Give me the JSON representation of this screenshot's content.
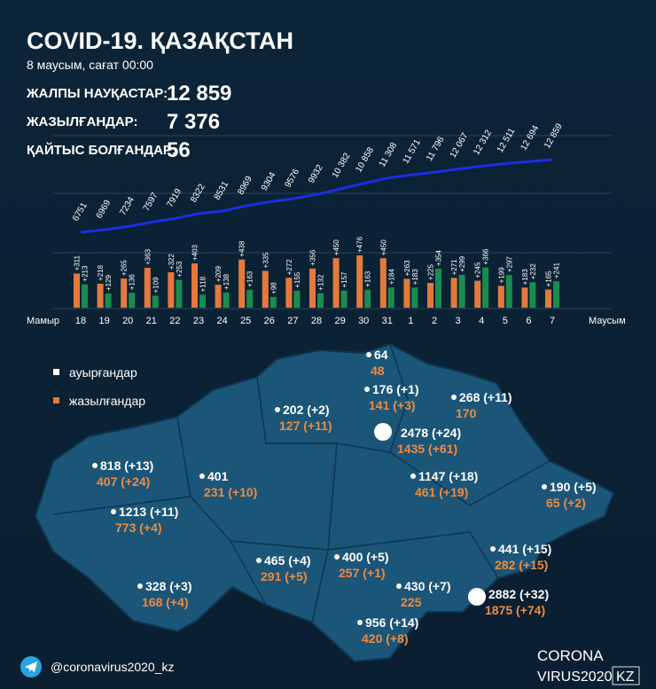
{
  "header": {
    "title": "COVID-19. ҚАЗАҚСТАН",
    "subtitle": "8 маусым, сағат 00:00",
    "stats": [
      {
        "label": "ЖАЛПЫ НАУҚАСТАР:",
        "value": "12 859"
      },
      {
        "label": "ЖАЗЫЛҒАНДАР:",
        "value": "7 376"
      },
      {
        "label": "ҚАЙТЫС БОЛҒАНДАР:",
        "value": "56"
      }
    ]
  },
  "chart_data": {
    "type": "bar",
    "categories": [
      "18",
      "19",
      "20",
      "21",
      "22",
      "23",
      "24",
      "25",
      "26",
      "27",
      "28",
      "29",
      "30",
      "31",
      "1",
      "2",
      "3",
      "4",
      "5",
      "6",
      "7"
    ],
    "month_labels": [
      "Мамыр",
      "Маусым"
    ],
    "series": [
      {
        "type": "line",
        "color": "#1d2de0",
        "values": [
          6751,
          6969,
          7234,
          7597,
          7919,
          8322,
          8531,
          8969,
          9304,
          9576,
          9932,
          10382,
          10858,
          11308,
          11571,
          11796,
          12067,
          12312,
          12511,
          12694,
          12859
        ],
        "value_labels": [
          "6751",
          "6969",
          "7234",
          "7597",
          "7919",
          "8322",
          "8531",
          "8969",
          "9304",
          "9576",
          "9932",
          "10 382",
          "10 858",
          "11 308",
          "11 571",
          "11 796",
          "12 067",
          "12 312",
          "12 511",
          "12 694",
          "12 859"
        ]
      },
      {
        "color": "#e5793d",
        "values": [
          311,
          218,
          265,
          363,
          322,
          403,
          209,
          438,
          335,
          272,
          356,
          450,
          476,
          450,
          263,
          225,
          271,
          245,
          199,
          183,
          165
        ],
        "value_labels": [
          "+311",
          "+218",
          "+265",
          "+363",
          "+322",
          "+403",
          "+209",
          "+438",
          "+335",
          "+272",
          "+356",
          "+450",
          "+476",
          "+450",
          "+263",
          "+225",
          "+271",
          "+245",
          "+199",
          "+183",
          "+165"
        ]
      },
      {
        "color": "#1a8c4e",
        "values": [
          213,
          129,
          136,
          109,
          253,
          118,
          138,
          163,
          98,
          155,
          132,
          157,
          163,
          184,
          183,
          354,
          299,
          366,
          297,
          232,
          241
        ],
        "value_labels": [
          "+213",
          "+129",
          "+136",
          "+109",
          "+253",
          "+118",
          "+138",
          "+163",
          "+98",
          "+155",
          "+132",
          "+157",
          "+163",
          "+184",
          "+183",
          "+354",
          "+299",
          "+366",
          "+297",
          "+232",
          "+241"
        ]
      }
    ]
  },
  "map": {
    "legend": [
      "ауырғандар",
      "жазылғандар"
    ],
    "regions": [
      [
        "64",
        "48"
      ],
      [
        "176 (+1)",
        "141 (+3)"
      ],
      [
        "268 (+11)",
        "170"
      ],
      [
        "202 (+2)",
        "127 (+11)"
      ],
      [
        "2478 (+24)",
        "1435 (+61)"
      ],
      [
        "818 (+13)",
        "407 (+24)"
      ],
      [
        "401",
        "231 (+10)"
      ],
      [
        "1147 (+18)",
        "461 (+19)"
      ],
      [
        "190 (+5)",
        "65 (+2)"
      ],
      [
        "1213 (+11)",
        "773 (+4)"
      ],
      [
        "441 (+15)",
        "282 (+15)"
      ],
      [
        "465 (+4)",
        "291 (+5)"
      ],
      [
        "400 (+5)",
        "257 (+1)"
      ],
      [
        "430 (+7)",
        "225"
      ],
      [
        "2882 (+32)",
        "1875 (+74)"
      ],
      [
        "328 (+3)",
        "168 (+4)"
      ],
      [
        "956 (+14)",
        "420 (+8)"
      ]
    ]
  },
  "footer": {
    "handle": "@coronavirus2020_kz",
    "logo": [
      "CORONA",
      "VIRUS2020",
      "KZ"
    ]
  }
}
